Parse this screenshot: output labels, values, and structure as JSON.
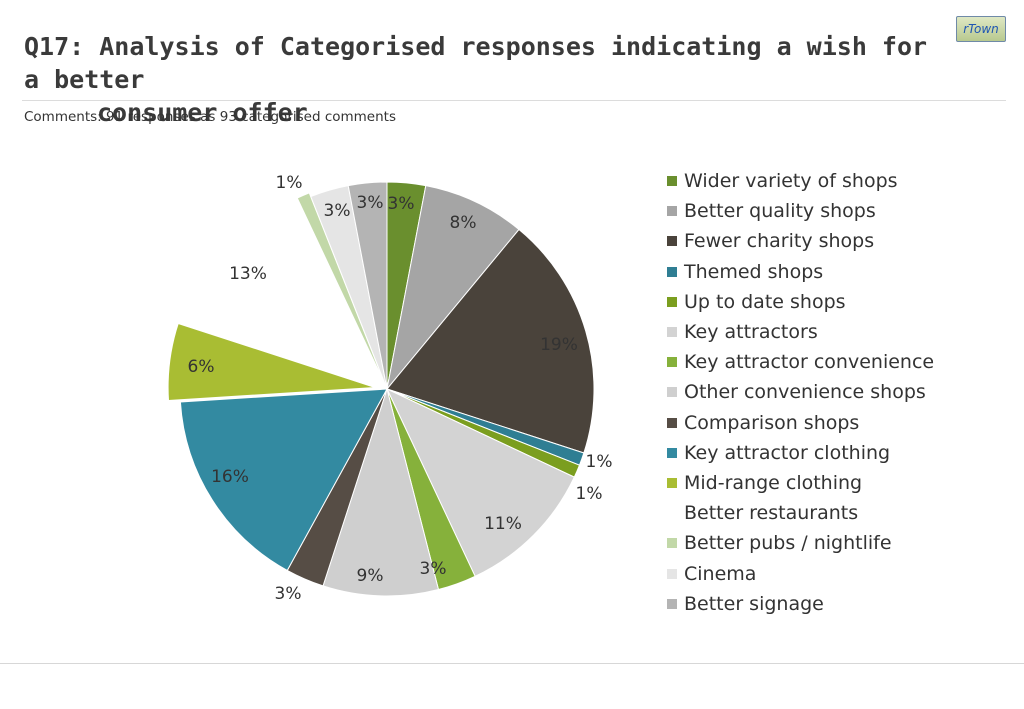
{
  "title": {
    "line1": "Q17: Analysis of Categorised responses indicating a wish for a  better",
    "line2": "consumer offer"
  },
  "subtitle": "Comments: 91 responses as 93 categorised comments",
  "logo": {
    "text": "rTown",
    "color": "#1f56b3"
  },
  "chart_data": {
    "type": "pie",
    "start_angle_deg": 0,
    "direction": "clockwise",
    "legend_position": "right",
    "slices": [
      {
        "name": "Wider variety of shops",
        "value": 3,
        "label": "3%",
        "color": "#6a8f2e"
      },
      {
        "name": "Better quality shops",
        "value": 8,
        "label": "8%",
        "color": "#a5a5a5"
      },
      {
        "name": "Fewer charity shops",
        "value": 19,
        "label": "19%",
        "color": "#4a433b"
      },
      {
        "name": "Themed shops",
        "value": 1,
        "label": "1%",
        "color": "#2f7e93"
      },
      {
        "name": "Up to date shops",
        "value": 1,
        "label": "1%",
        "color": "#7b9e1f"
      },
      {
        "name": "Key attractors",
        "value": 11,
        "label": "11%",
        "color": "#d3d3d3"
      },
      {
        "name": "Key attractor convenience",
        "value": 3,
        "label": "3%",
        "color": "#86b13b"
      },
      {
        "name": "Other convenience shops",
        "value": 9,
        "label": "9%",
        "color": "#cfcfcf"
      },
      {
        "name": "Comparison shops",
        "value": 3,
        "label": "3%",
        "color": "#564d45"
      },
      {
        "name": "Key attractor clothing",
        "value": 16,
        "label": "16%",
        "color": "#338aa1"
      },
      {
        "name": "Mid-range clothing",
        "value": 6,
        "label": "6%",
        "color": "#a9bd33"
      },
      {
        "name": "Better restaurants",
        "value": 13,
        "label": "13%",
        "color": "#ffffff"
      },
      {
        "name": "Better pubs / nightlife",
        "value": 1,
        "label": "1%",
        "color": "#c2d8a8"
      },
      {
        "name": "Cinema",
        "value": 3,
        "label": "3%",
        "color": "#e5e5e5"
      },
      {
        "name": "Better signage",
        "value": 3,
        "label": "3%",
        "color": "#b4b4b4"
      }
    ]
  }
}
